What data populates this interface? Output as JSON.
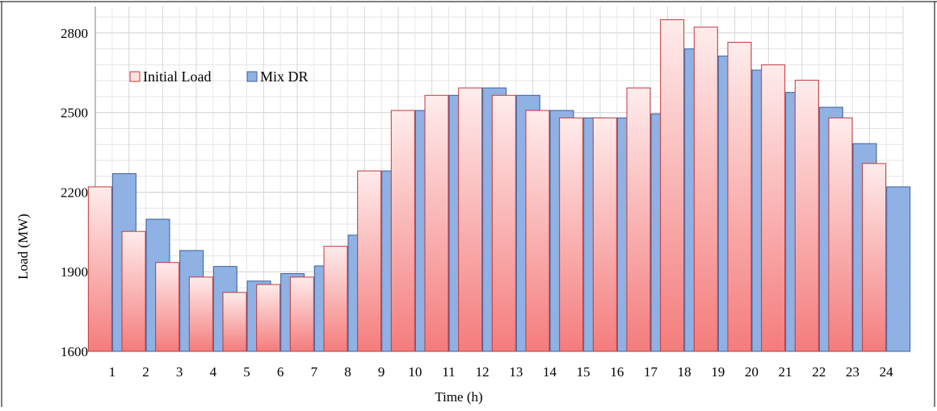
{
  "chart_data": {
    "type": "bar",
    "title": "",
    "xlabel": "Time (h)",
    "ylabel": "Load (MW)",
    "ylim": [
      1600,
      2900
    ],
    "yticks": [
      1600,
      1900,
      2200,
      2500,
      2800
    ],
    "grid": true,
    "legend_position": "top-left",
    "categories": [
      "1",
      "2",
      "3",
      "4",
      "5",
      "6",
      "7",
      "8",
      "9",
      "10",
      "11",
      "12",
      "13",
      "14",
      "15",
      "16",
      "17",
      "18",
      "19",
      "20",
      "21",
      "22",
      "23",
      "24"
    ],
    "series": [
      {
        "name": "Initial Load",
        "color_top": "#ffecec",
        "color_bottom": "#f47c7c",
        "stroke": "#c0393b",
        "values": [
          2220,
          2052,
          1935,
          1880,
          1822,
          1852,
          1880,
          1996,
          2280,
          2508,
          2565,
          2593,
          2565,
          2508,
          2480,
          2480,
          2593,
          2850,
          2822,
          2765,
          2680,
          2622,
          2480,
          2308
        ]
      },
      {
        "name": "Mix DR",
        "color_top": "#8fb1e3",
        "color_bottom": "#8fb1e3",
        "stroke": "#3b5f9e",
        "values": [
          2270,
          2098,
          1980,
          1920,
          1865,
          1893,
          1922,
          2038,
          2280,
          2508,
          2565,
          2593,
          2565,
          2508,
          2480,
          2480,
          2495,
          2740,
          2713,
          2660,
          2576,
          2520,
          2383,
          2220
        ]
      }
    ]
  }
}
